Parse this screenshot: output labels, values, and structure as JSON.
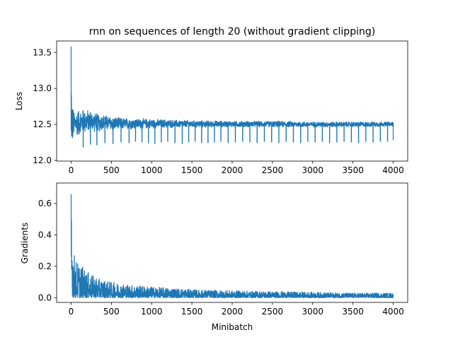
{
  "chart_data": [
    {
      "type": "line",
      "title": "rnn on sequences of length 20 (without gradient clipping)",
      "xlabel": "",
      "ylabel": "Loss",
      "xlim": [
        -180,
        4180
      ],
      "ylim": [
        11.99,
        13.66
      ],
      "xticks": [
        0,
        500,
        1000,
        1500,
        2000,
        2500,
        3000,
        3500,
        4000
      ],
      "yticks": [
        12.0,
        12.5,
        13.0,
        13.5
      ],
      "ytick_labels": [
        "12.0",
        "12.5",
        "13.0",
        "13.5"
      ],
      "color": "#1f77b4",
      "series": [
        {
          "x": [
            0,
            2,
            5,
            8,
            12,
            18,
            25,
            35,
            50,
            70,
            100,
            130,
            160,
            200,
            250,
            300,
            400,
            500,
            600,
            800,
            1000,
            1200,
            1500,
            2000,
            2500,
            3000,
            3500,
            4000
          ],
          "y_max": [
            13.58,
            13.3,
            13.1,
            12.95,
            12.85,
            12.8,
            12.75,
            12.72,
            12.72,
            12.72,
            12.73,
            12.72,
            12.73,
            12.72,
            12.7,
            12.67,
            12.65,
            12.62,
            12.6,
            12.59,
            12.58,
            12.57,
            12.56,
            12.55,
            12.55,
            12.54,
            12.54,
            12.54
          ],
          "y_min": [
            12.42,
            12.3,
            12.2,
            12.12,
            12.07,
            12.2,
            12.25,
            12.28,
            12.3,
            12.32,
            12.33,
            12.35,
            12.36,
            12.37,
            12.38,
            12.39,
            12.4,
            12.41,
            12.42,
            12.43,
            12.44,
            12.45,
            12.45,
            12.46,
            12.46,
            12.46,
            12.46,
            12.47
          ],
          "spikes": {
            "x": [
              150,
              240,
              320,
              420,
              520,
              620,
              720,
              800,
              880,
              960,
              1040,
              1120,
              1200,
              1290,
              1380,
              1460,
              1540,
              1620,
              1700,
              1780,
              1860,
              1950,
              2040,
              2130,
              2220,
              2310,
              2400,
              2490,
              2580,
              2670,
              2760,
              2850,
              2940,
              3030,
              3120,
              3210,
              3300,
              3390,
              3480,
              3570,
              3660,
              3750,
              3840,
              3930
            ],
            "y": [
              12.18,
              12.22,
              12.21,
              12.24,
              12.23,
              12.25,
              12.24,
              12.26,
              12.25,
              12.24,
              12.23,
              12.25,
              12.26,
              12.24,
              12.23,
              12.25,
              12.26,
              12.24,
              12.24,
              12.25,
              12.26,
              12.24,
              12.25,
              12.26,
              12.25,
              12.24,
              12.26,
              12.25,
              12.24,
              12.26,
              12.25,
              12.24,
              12.26,
              12.25,
              12.26,
              12.24,
              12.25,
              12.26,
              12.25,
              12.24,
              12.26,
              12.25,
              12.26,
              12.26
            ]
          },
          "final": 12.28
        }
      ]
    },
    {
      "type": "line",
      "title": "",
      "xlabel": "Minibatch",
      "ylabel": "Gradients",
      "xlim": [
        -180,
        4180
      ],
      "ylim": [
        -0.03,
        0.73
      ],
      "xticks": [
        0,
        500,
        1000,
        1500,
        2000,
        2500,
        3000,
        3500,
        4000
      ],
      "yticks": [
        0.0,
        0.2,
        0.4,
        0.6
      ],
      "ytick_labels": [
        "0.0",
        "0.2",
        "0.4",
        "0.6"
      ],
      "color": "#1f77b4",
      "series": [
        {
          "x": [
            0,
            3,
            8,
            15,
            25,
            40,
            60,
            90,
            130,
            180,
            250,
            350,
            500,
            700,
            1000,
            1300,
            1600,
            2000,
            2500,
            3000,
            3500,
            4000
          ],
          "y_max": [
            0.7,
            0.66,
            0.55,
            0.42,
            0.34,
            0.28,
            0.24,
            0.22,
            0.21,
            0.17,
            0.15,
            0.12,
            0.1,
            0.085,
            0.07,
            0.06,
            0.05,
            0.045,
            0.04,
            0.035,
            0.03,
            0.03
          ],
          "y_min": [
            0.1,
            0.06,
            0.03,
            0.01,
            0.0,
            0.0,
            0.0,
            0.0,
            0.0,
            0.0,
            0.0,
            0.0,
            0.0,
            0.0,
            0.0,
            0.0,
            0.0,
            0.0,
            0.0,
            0.0,
            0.0,
            0.0
          ]
        }
      ]
    }
  ]
}
